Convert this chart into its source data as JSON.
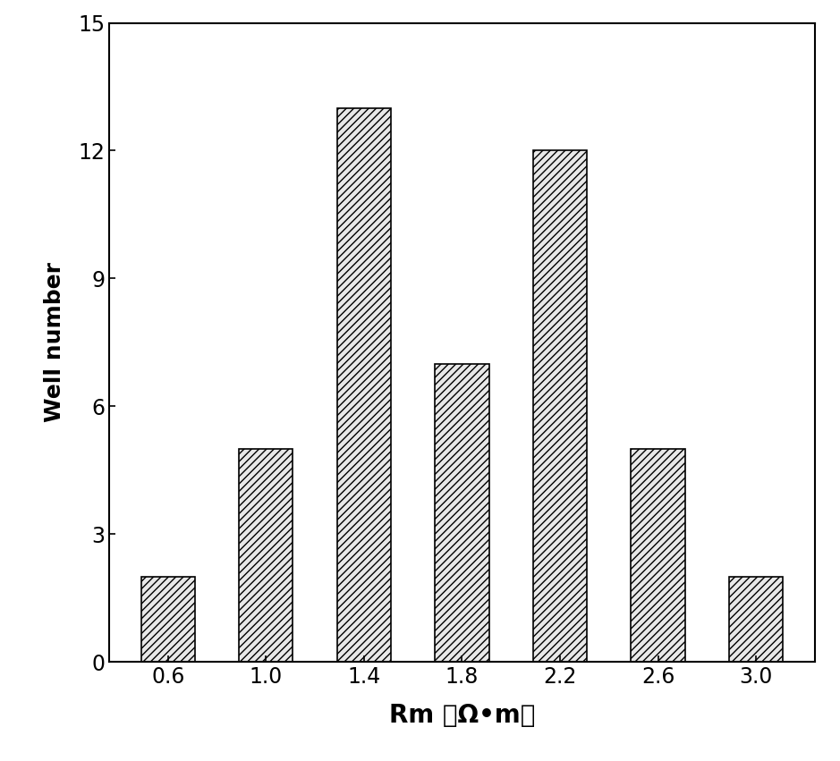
{
  "categories": [
    "0.6",
    "1.0",
    "1.4",
    "1.8",
    "2.2",
    "2.6",
    "3.0"
  ],
  "values": [
    2,
    5,
    13,
    7,
    12,
    5,
    2
  ],
  "xlabel": "Rm （Ω•m）",
  "ylabel": "Well number",
  "ylim": [
    0,
    15
  ],
  "yticks": [
    0,
    3,
    6,
    9,
    12,
    15
  ],
  "bar_color": "#e8e8e8",
  "hatch": "////",
  "bar_width": 0.55,
  "background_color": "#ffffff",
  "xlabel_fontsize": 20,
  "ylabel_fontsize": 18,
  "tick_fontsize": 17
}
